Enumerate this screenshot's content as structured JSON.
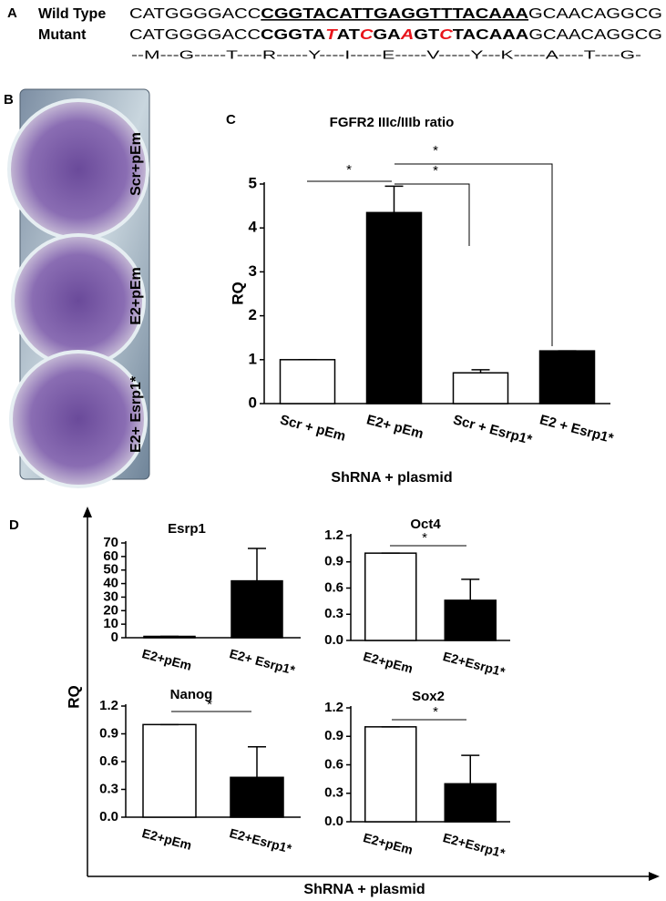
{
  "panel_a": {
    "label": "A",
    "wild_type": {
      "label": "Wild Type",
      "segments": [
        "CATGGGGACC",
        "CGGTACATTGAGGTTTACAAA",
        "GCAACAGGCG"
      ]
    },
    "mutant": {
      "label": "Mutant",
      "segments": [
        "CATGGGGACC",
        "CGGTA",
        "T",
        "AT",
        "C",
        "GA",
        "A",
        "GT",
        "C",
        "TACAAA",
        "GCAACAGGCG"
      ]
    },
    "translation": "--M---G-----T----R-----Y----I-----E-----V-----Y---K-----A----T----G-"
  },
  "panel_b": {
    "label": "B",
    "wells": [
      "Scr+pEm",
      "E2+pEm",
      "E2+ Esrp1*"
    ]
  },
  "panel_c": {
    "label": "C"
  },
  "panel_d": {
    "label": "D",
    "y_label": "RQ",
    "x_label": "ShRNA + plasmid"
  },
  "chart_data": [
    {
      "type": "bar",
      "title": "FGFR2 IIIc/IIIb ratio",
      "y_label": "RQ",
      "x_label": "ShRNA + plasmid",
      "categories": [
        "Scr + pEm",
        "E2+ pEm",
        "Scr + Esrp1*",
        "E2 + Esrp1*"
      ],
      "values": [
        1,
        4.35,
        0.7,
        1.2
      ],
      "errors": [
        0,
        0.6,
        0.07,
        0
      ],
      "colors": [
        "#ffffff",
        "#000000",
        "#ffffff",
        "#000000"
      ],
      "ylim": [
        0,
        5
      ],
      "yticks": [
        0,
        1,
        2,
        3,
        4,
        5
      ],
      "annotations": [
        "*",
        "*",
        "*"
      ]
    },
    {
      "type": "bar",
      "title": "Esrp1",
      "categories": [
        "E2+pEm",
        "E2+ Esrp1*"
      ],
      "values": [
        1,
        42
      ],
      "errors": [
        0,
        24
      ],
      "colors": [
        "#ffffff",
        "#000000"
      ],
      "ylim": [
        0,
        70
      ],
      "yticks": [
        0,
        10,
        20,
        30,
        40,
        50,
        60,
        70
      ],
      "annotations": []
    },
    {
      "type": "bar",
      "title": "Oct4",
      "categories": [
        "E2+pEm",
        "E2+Esrp1*"
      ],
      "values": [
        1,
        0.46
      ],
      "errors": [
        0,
        0.24
      ],
      "colors": [
        "#ffffff",
        "#000000"
      ],
      "ylim": [
        0,
        1.2
      ],
      "yticks": [
        {
          "value": 0,
          "label": "0.0"
        },
        0.3,
        0.6,
        0.9,
        1.2
      ],
      "annotations": [
        "*"
      ]
    },
    {
      "type": "bar",
      "title": "Nanog",
      "categories": [
        "E2+pEm",
        "E2+Esrp1*"
      ],
      "values": [
        1,
        0.43
      ],
      "errors": [
        0,
        0.33
      ],
      "colors": [
        "#ffffff",
        "#000000"
      ],
      "ylim": [
        0,
        1.2
      ],
      "yticks": [
        {
          "value": 0,
          "label": "0.0"
        },
        0.3,
        0.6,
        0.9,
        1.2
      ],
      "annotations": [
        "*"
      ]
    },
    {
      "type": "bar",
      "title": "Sox2",
      "categories": [
        "E2+pEm",
        "E2+Esrp1*"
      ],
      "values": [
        1,
        0.4
      ],
      "errors": [
        0,
        0.3
      ],
      "colors": [
        "#ffffff",
        "#000000"
      ],
      "ylim": [
        0,
        1.2
      ],
      "yticks": [
        {
          "value": 0,
          "label": "0.0"
        },
        0.3,
        0.6,
        0.9,
        1.2
      ],
      "annotations": [
        "*"
      ]
    }
  ]
}
